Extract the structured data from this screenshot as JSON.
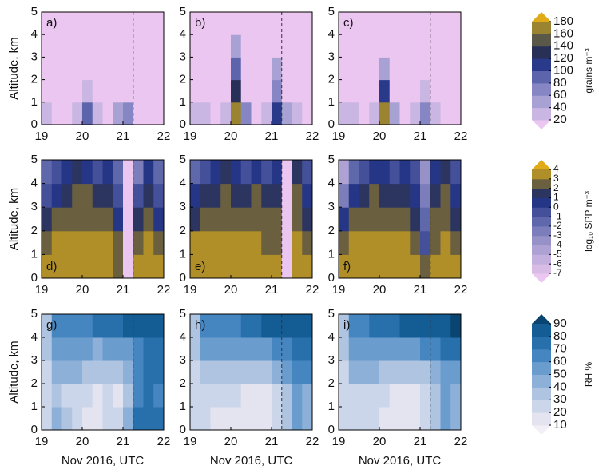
{
  "chart_data": [
    {
      "type": "heatmap",
      "ylabel": "Altitude, km",
      "x": [
        19.125,
        19.375,
        19.625,
        19.875,
        20.125,
        20.375,
        20.625,
        20.875,
        21.125,
        21.375,
        21.625,
        21.875
      ],
      "y": [
        0.5,
        1.5,
        2.5,
        3.5,
        4.5
      ],
      "xlim": [
        19,
        22
      ],
      "ylim": [
        0,
        5
      ],
      "xticks": [
        19,
        20,
        21,
        22
      ],
      "yticks": [
        0,
        1,
        2,
        3,
        4,
        5
      ],
      "colorbar": {
        "label": "grains m⁻³",
        "ticks": [
          20,
          40,
          60,
          80,
          100,
          120,
          140,
          160,
          180
        ],
        "colors": [
          "#ebc6f0",
          "#cab6e2",
          "#a8a2d4",
          "#8686c4",
          "#5c64ac",
          "#2a3a8a",
          "#283058",
          "#5a5848",
          "#9a8432",
          "#e0aa18"
        ]
      },
      "panels": [
        {
          "label": "a)",
          "vline": 21.25,
          "values": [
            [
              25,
              15,
              10,
              20,
              90,
              30,
              15,
              40,
              60,
              15,
              10,
              10
            ],
            [
              5,
              5,
              5,
              5,
              30,
              5,
              5,
              5,
              10,
              5,
              5,
              5
            ],
            [
              5,
              5,
              5,
              5,
              5,
              5,
              5,
              5,
              5,
              5,
              5,
              5
            ],
            [
              5,
              5,
              5,
              5,
              5,
              5,
              5,
              5,
              5,
              5,
              5,
              5
            ],
            [
              5,
              5,
              5,
              5,
              5,
              5,
              5,
              5,
              5,
              5,
              5,
              5
            ]
          ]
        },
        {
          "label": "b)",
          "vline": 21.25,
          "values": [
            [
              30,
              20,
              15,
              30,
              170,
              60,
              15,
              30,
              100,
              40,
              20,
              15
            ],
            [
              5,
              5,
              5,
              5,
              120,
              10,
              5,
              5,
              60,
              5,
              5,
              5
            ],
            [
              5,
              5,
              5,
              5,
              90,
              5,
              5,
              5,
              40,
              5,
              5,
              5
            ],
            [
              5,
              5,
              5,
              5,
              40,
              5,
              5,
              5,
              10,
              5,
              5,
              5
            ],
            [
              5,
              5,
              5,
              5,
              5,
              5,
              5,
              5,
              5,
              5,
              5,
              5
            ]
          ]
        },
        {
          "label": "c)",
          "vline": 21.25,
          "values": [
            [
              30,
              20,
              15,
              30,
              170,
              50,
              15,
              30,
              70,
              25,
              15,
              10
            ],
            [
              5,
              5,
              5,
              5,
              110,
              10,
              5,
              5,
              30,
              5,
              5,
              5
            ],
            [
              5,
              5,
              5,
              5,
              50,
              5,
              5,
              5,
              5,
              5,
              5,
              5
            ],
            [
              5,
              5,
              5,
              5,
              10,
              5,
              5,
              5,
              5,
              5,
              5,
              5
            ],
            [
              5,
              5,
              5,
              5,
              5,
              5,
              5,
              5,
              5,
              5,
              5,
              5
            ]
          ]
        }
      ]
    },
    {
      "type": "heatmap",
      "ylabel": "Altitude, km",
      "x": [
        19.125,
        19.375,
        19.625,
        19.875,
        20.125,
        20.375,
        20.625,
        20.875,
        21.125,
        21.375,
        21.625,
        21.875
      ],
      "y": [
        0.5,
        1.5,
        2.5,
        3.5,
        4.5
      ],
      "xlim": [
        19,
        22
      ],
      "ylim": [
        0,
        5
      ],
      "xticks": [
        19,
        20,
        21,
        22
      ],
      "yticks": [
        0,
        1,
        2,
        3,
        4,
        5
      ],
      "colorbar": {
        "label": "log₁₀ SPP m⁻³",
        "ticks": [
          -7,
          -6,
          -5,
          -4,
          -3,
          -2,
          -1,
          0,
          1,
          2,
          3,
          4
        ],
        "colors": [
          "#ebc6f0",
          "#d8bce6",
          "#c4b0de",
          "#aea2d4",
          "#9692c8",
          "#7c7ebc",
          "#6068ac",
          "#44509a",
          "#263686",
          "#2c3560",
          "#6a6040",
          "#b08e28",
          "#e0aa18"
        ]
      },
      "panels": [
        {
          "label": "d)",
          "vline": 21.25,
          "values": [
            [
              3.5,
              3.5,
              3.5,
              3.5,
              3.5,
              3.5,
              3.5,
              2.5,
              -8,
              3,
              3,
              3
            ],
            [
              2.5,
              3,
              3,
              3,
              3,
              3,
              3,
              2,
              -8,
              2,
              3,
              2.5
            ],
            [
              1,
              2,
              2.5,
              2.5,
              2.5,
              2.5,
              2.5,
              0,
              -8,
              1,
              2.5,
              0
            ],
            [
              -1,
              0,
              1,
              2,
              2,
              1,
              1.5,
              -1,
              -8,
              -1,
              1,
              -1
            ],
            [
              -2,
              -1,
              0,
              1,
              0,
              -1,
              0,
              -2,
              -8,
              -3,
              0,
              -2
            ]
          ]
        },
        {
          "label": "e)",
          "vline": 21.25,
          "values": [
            [
              3.5,
              3.5,
              3.5,
              3.5,
              3.5,
              3.5,
              3.5,
              3,
              3,
              -8,
              3,
              3
            ],
            [
              3,
              3,
              3,
              3,
              3,
              3,
              3,
              2.5,
              2.5,
              -8,
              3,
              2.5
            ],
            [
              1.5,
              2.5,
              2.5,
              2.5,
              2.5,
              2.5,
              2.5,
              2,
              2,
              -8,
              2.5,
              1
            ],
            [
              0,
              1,
              1.5,
              2,
              1.5,
              1,
              2,
              1,
              1,
              -8,
              2,
              0
            ],
            [
              -2,
              -1,
              0,
              1,
              0,
              -1,
              0,
              -1,
              0,
              -8,
              1,
              -1
            ]
          ]
        },
        {
          "label": "f)",
          "vline": 21.25,
          "values": [
            [
              3,
              3.5,
              3.5,
              3.5,
              3.5,
              3.5,
              3.5,
              3,
              2,
              3,
              3,
              3
            ],
            [
              2,
              3,
              3,
              3,
              3,
              3,
              3,
              2.5,
              -1,
              2.5,
              3,
              2.5
            ],
            [
              0,
              2,
              2.5,
              2.5,
              2.5,
              2.5,
              2.5,
              1,
              -2,
              2,
              2.5,
              1.5
            ],
            [
              -3,
              0,
              1,
              2,
              1.5,
              1,
              1.5,
              0,
              -3,
              1,
              2,
              0
            ],
            [
              -5,
              -2,
              -1,
              0,
              0,
              -1,
              0,
              -1,
              -4,
              0,
              1,
              -1
            ]
          ]
        }
      ]
    },
    {
      "type": "heatmap",
      "ylabel": "Altitude, km",
      "xlabel": "Nov 2016, UTC",
      "x": [
        19.125,
        19.375,
        19.625,
        19.875,
        20.125,
        20.375,
        20.625,
        20.875,
        21.125,
        21.375,
        21.625,
        21.875
      ],
      "y": [
        0.5,
        1.5,
        2.5,
        3.5,
        4.5
      ],
      "xlim": [
        19,
        22
      ],
      "ylim": [
        0,
        5
      ],
      "xticks": [
        19,
        20,
        21,
        22
      ],
      "yticks": [
        0,
        1,
        2,
        3,
        4,
        5
      ],
      "colorbar": {
        "label": "RH %",
        "ticks": [
          10,
          20,
          30,
          40,
          50,
          60,
          70,
          80,
          90
        ],
        "colors": [
          "#f4eef6",
          "#e4e4f0",
          "#ccd6ea",
          "#aec4e0",
          "#8cb0d8",
          "#6a9cce",
          "#4686c0",
          "#2870ac",
          "#145c94",
          "#0a4470"
        ]
      },
      "panels": [
        {
          "label": "g)",
          "vline": 21.25,
          "values": [
            [
              25,
              40,
              30,
              20,
              15,
              15,
              20,
              25,
              40,
              70,
              75,
              70
            ],
            [
              20,
              30,
              25,
              25,
              20,
              15,
              20,
              15,
              30,
              60,
              70,
              65
            ],
            [
              25,
              45,
              40,
              40,
              35,
              30,
              35,
              30,
              45,
              60,
              70,
              70
            ],
            [
              30,
              55,
              55,
              50,
              50,
              45,
              50,
              50,
              55,
              65,
              70,
              75
            ],
            [
              30,
              60,
              60,
              60,
              65,
              70,
              70,
              75,
              80,
              80,
              85,
              85
            ]
          ]
        },
        {
          "label": "h)",
          "vline": 21.25,
          "values": [
            [
              20,
              20,
              15,
              15,
              15,
              15,
              15,
              15,
              20,
              30,
              50,
              40
            ],
            [
              20,
              25,
              20,
              20,
              20,
              15,
              15,
              15,
              20,
              35,
              50,
              45
            ],
            [
              25,
              35,
              35,
              35,
              35,
              30,
              30,
              30,
              40,
              50,
              60,
              60
            ],
            [
              30,
              50,
              55,
              50,
              50,
              50,
              50,
              55,
              60,
              65,
              70,
              75
            ],
            [
              35,
              60,
              65,
              65,
              65,
              70,
              75,
              80,
              85,
              85,
              85,
              80
            ]
          ]
        },
        {
          "label": "i)",
          "vline": 21.25,
          "values": [
            [
              20,
              20,
              25,
              25,
              15,
              15,
              15,
              15,
              20,
              30,
              55,
              40
            ],
            [
              20,
              25,
              25,
              25,
              20,
              15,
              15,
              15,
              20,
              35,
              50,
              40
            ],
            [
              25,
              40,
              40,
              40,
              35,
              30,
              30,
              30,
              35,
              45,
              50,
              50
            ],
            [
              30,
              55,
              55,
              55,
              55,
              50,
              50,
              55,
              60,
              65,
              70,
              70
            ],
            [
              35,
              60,
              65,
              70,
              70,
              75,
              80,
              80,
              85,
              80,
              85,
              90
            ]
          ]
        }
      ]
    }
  ]
}
